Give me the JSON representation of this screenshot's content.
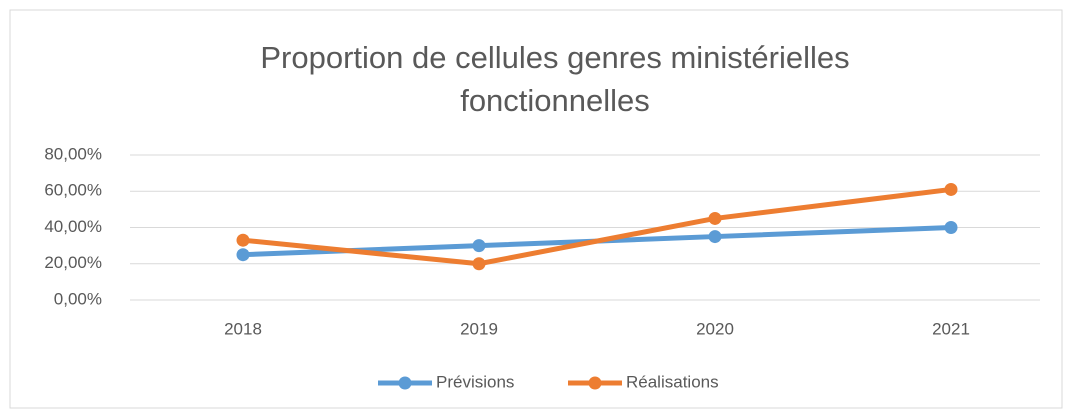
{
  "chart_data": {
    "type": "line",
    "title": [
      "Proportion de cellules genres ministérielles",
      "fonctionnelles"
    ],
    "categories": [
      "2018",
      "2019",
      "2020",
      "2021"
    ],
    "series": [
      {
        "name": "Prévisions",
        "color": "#5b9bd5",
        "values": [
          25,
          30,
          35,
          40
        ]
      },
      {
        "name": "Réalisations",
        "color": "#ed7d31",
        "values": [
          33,
          20,
          45,
          61
        ]
      }
    ],
    "ylim": [
      0,
      80
    ],
    "yticks": [
      {
        "value": 0,
        "label": "0,00%"
      },
      {
        "value": 20,
        "label": "20,00%"
      },
      {
        "value": 40,
        "label": "40,00%"
      },
      {
        "value": 60,
        "label": "60,00%"
      },
      {
        "value": 80,
        "label": "80,00%"
      }
    ],
    "grid": true,
    "legend": "bottom"
  }
}
